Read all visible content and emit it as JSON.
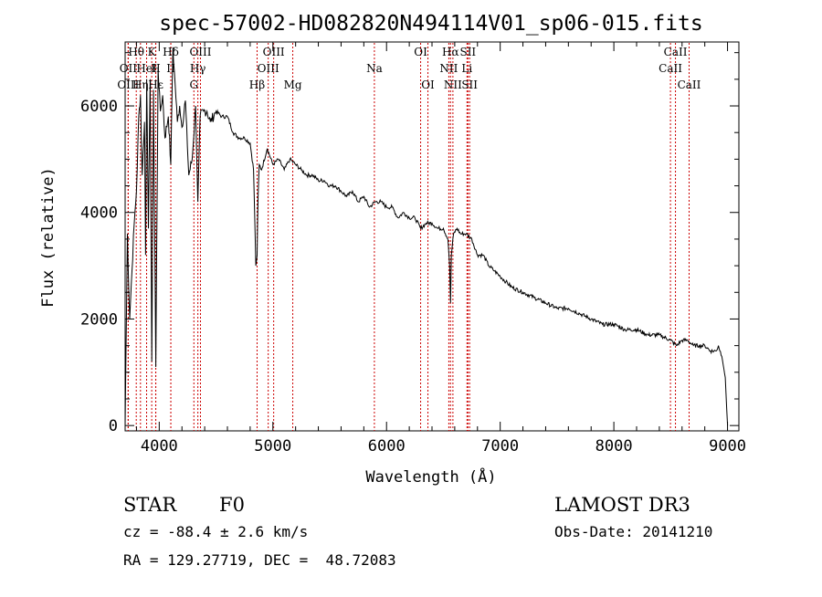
{
  "chart_data": {
    "type": "line",
    "title": "spec-57002-HD082820N494114V01_sp06-015.fits",
    "xlabel": "Wavelength (Å)",
    "ylabel": "Flux (relative)",
    "xlim": [
      3700,
      9100
    ],
    "ylim": [
      -100,
      7200
    ],
    "xticks": [
      4000,
      5000,
      6000,
      7000,
      8000,
      9000
    ],
    "yticks": [
      0,
      2000,
      4000,
      6000
    ],
    "series": [
      {
        "name": "flux",
        "x": [
          3700,
          3720,
          3740,
          3760,
          3780,
          3800,
          3820,
          3835,
          3850,
          3870,
          3880,
          3890,
          3905,
          3920,
          3935,
          3950,
          3970,
          3990,
          4010,
          4030,
          4050,
          4080,
          4102,
          4120,
          4140,
          4160,
          4180,
          4200,
          4230,
          4260,
          4290,
          4320,
          4340,
          4360,
          4390,
          4420,
          4450,
          4500,
          4550,
          4600,
          4650,
          4700,
          4750,
          4800,
          4830,
          4850,
          4861,
          4870,
          4880,
          4900,
          4950,
          5000,
          5050,
          5100,
          5150,
          5200,
          5250,
          5300,
          5350,
          5400,
          5450,
          5500,
          5550,
          5600,
          5650,
          5700,
          5750,
          5800,
          5850,
          5900,
          5950,
          6000,
          6050,
          6100,
          6150,
          6200,
          6250,
          6300,
          6350,
          6400,
          6450,
          6500,
          6540,
          6555,
          6563,
          6570,
          6590,
          6620,
          6650,
          6700,
          6750,
          6800,
          6850,
          6900,
          6950,
          7000,
          7050,
          7100,
          7200,
          7300,
          7400,
          7500,
          7600,
          7700,
          7800,
          7900,
          8000,
          8100,
          8200,
          8300,
          8400,
          8500,
          8550,
          8600,
          8650,
          8700,
          8750,
          8800,
          8850,
          8900,
          8920,
          8950,
          8980,
          9000
        ],
        "y": [
          0,
          3600,
          2000,
          2900,
          3800,
          4400,
          5800,
          6200,
          4700,
          5700,
          3200,
          6500,
          3700,
          6500,
          1200,
          6300,
          1100,
          6700,
          5900,
          6200,
          5400,
          5800,
          4900,
          7100,
          6400,
          5700,
          6000,
          5600,
          6100,
          4700,
          5000,
          6000,
          4200,
          5800,
          5900,
          5900,
          5700,
          5900,
          5800,
          5800,
          5500,
          5400,
          5400,
          5300,
          4800,
          3000,
          3200,
          4300,
          4900,
          4800,
          5200,
          4900,
          5000,
          4800,
          5000,
          4900,
          4800,
          4700,
          4700,
          4600,
          4600,
          4500,
          4500,
          4400,
          4300,
          4400,
          4200,
          4300,
          4100,
          4200,
          4200,
          4100,
          4100,
          3900,
          4000,
          3900,
          3900,
          3700,
          3800,
          3800,
          3700,
          3700,
          3500,
          3000,
          2300,
          3200,
          3600,
          3700,
          3600,
          3600,
          3500,
          3200,
          3200,
          3000,
          2900,
          2800,
          2700,
          2600,
          2500,
          2400,
          2300,
          2200,
          2200,
          2100,
          2000,
          1900,
          1900,
          1800,
          1800,
          1700,
          1700,
          1600,
          1500,
          1600,
          1600,
          1500,
          1500,
          1500,
          1400,
          1400,
          1500,
          1300,
          900,
          0
        ]
      }
    ],
    "spectral_lines": [
      {
        "label": "Hθ",
        "x": 3798,
        "row": 0
      },
      {
        "label": "OII",
        "x": 3727,
        "row": 1
      },
      {
        "label": "OIII",
        "x": 3727,
        "row": 2
      },
      {
        "label": "K",
        "x": 3934,
        "row": 0
      },
      {
        "label": "HeI",
        "x": 3889,
        "row": 1
      },
      {
        "label": "Hη",
        "x": 3835,
        "row": 2
      },
      {
        "label": "Hδ",
        "x": 4102,
        "row": 0
      },
      {
        "label": "H",
        "x": 3969,
        "row": 1
      },
      {
        "label": "Hε",
        "x": 3970,
        "row": 2
      },
      {
        "label": "II",
        "x": 4102,
        "row": 1
      },
      {
        "label": "OIII",
        "x": 4363,
        "row": 0
      },
      {
        "label": "Hγ",
        "x": 4340,
        "row": 1
      },
      {
        "label": "G",
        "x": 4305,
        "row": 2
      },
      {
        "label": "OIII",
        "x": 5007,
        "row": 0
      },
      {
        "label": "OIII",
        "x": 4959,
        "row": 1
      },
      {
        "label": "Hβ",
        "x": 4861,
        "row": 2
      },
      {
        "label": "Mg",
        "x": 5175,
        "row": 2
      },
      {
        "label": "Na",
        "x": 5893,
        "row": 1
      },
      {
        "label": "OI",
        "x": 6300,
        "row": 0
      },
      {
        "label": "OI",
        "x": 6364,
        "row": 2
      },
      {
        "label": "Hα",
        "x": 6563,
        "row": 0
      },
      {
        "label": "SII",
        "x": 6716,
        "row": 0
      },
      {
        "label": "NII",
        "x": 6548,
        "row": 1
      },
      {
        "label": "Li",
        "x": 6708,
        "row": 1
      },
      {
        "label": "NII",
        "x": 6584,
        "row": 2
      },
      {
        "label": "SII",
        "x": 6731,
        "row": 2
      },
      {
        "label": "CaII",
        "x": 8542,
        "row": 0
      },
      {
        "label": "CaII",
        "x": 8498,
        "row": 1
      },
      {
        "label": "CaII",
        "x": 8662,
        "row": 2
      }
    ]
  },
  "info": {
    "object_class": "STAR",
    "subclass": "F0",
    "survey": "LAMOST DR3",
    "cz": "cz = -88.4 ± 2.6 km/s",
    "obs_date": "Obs-Date: 20141210",
    "coords": "RA = 129.27719, DEC =  48.72083"
  },
  "colors": {
    "spectrum": "#000000",
    "lines": "#cc0000",
    "axes": "#000000"
  }
}
